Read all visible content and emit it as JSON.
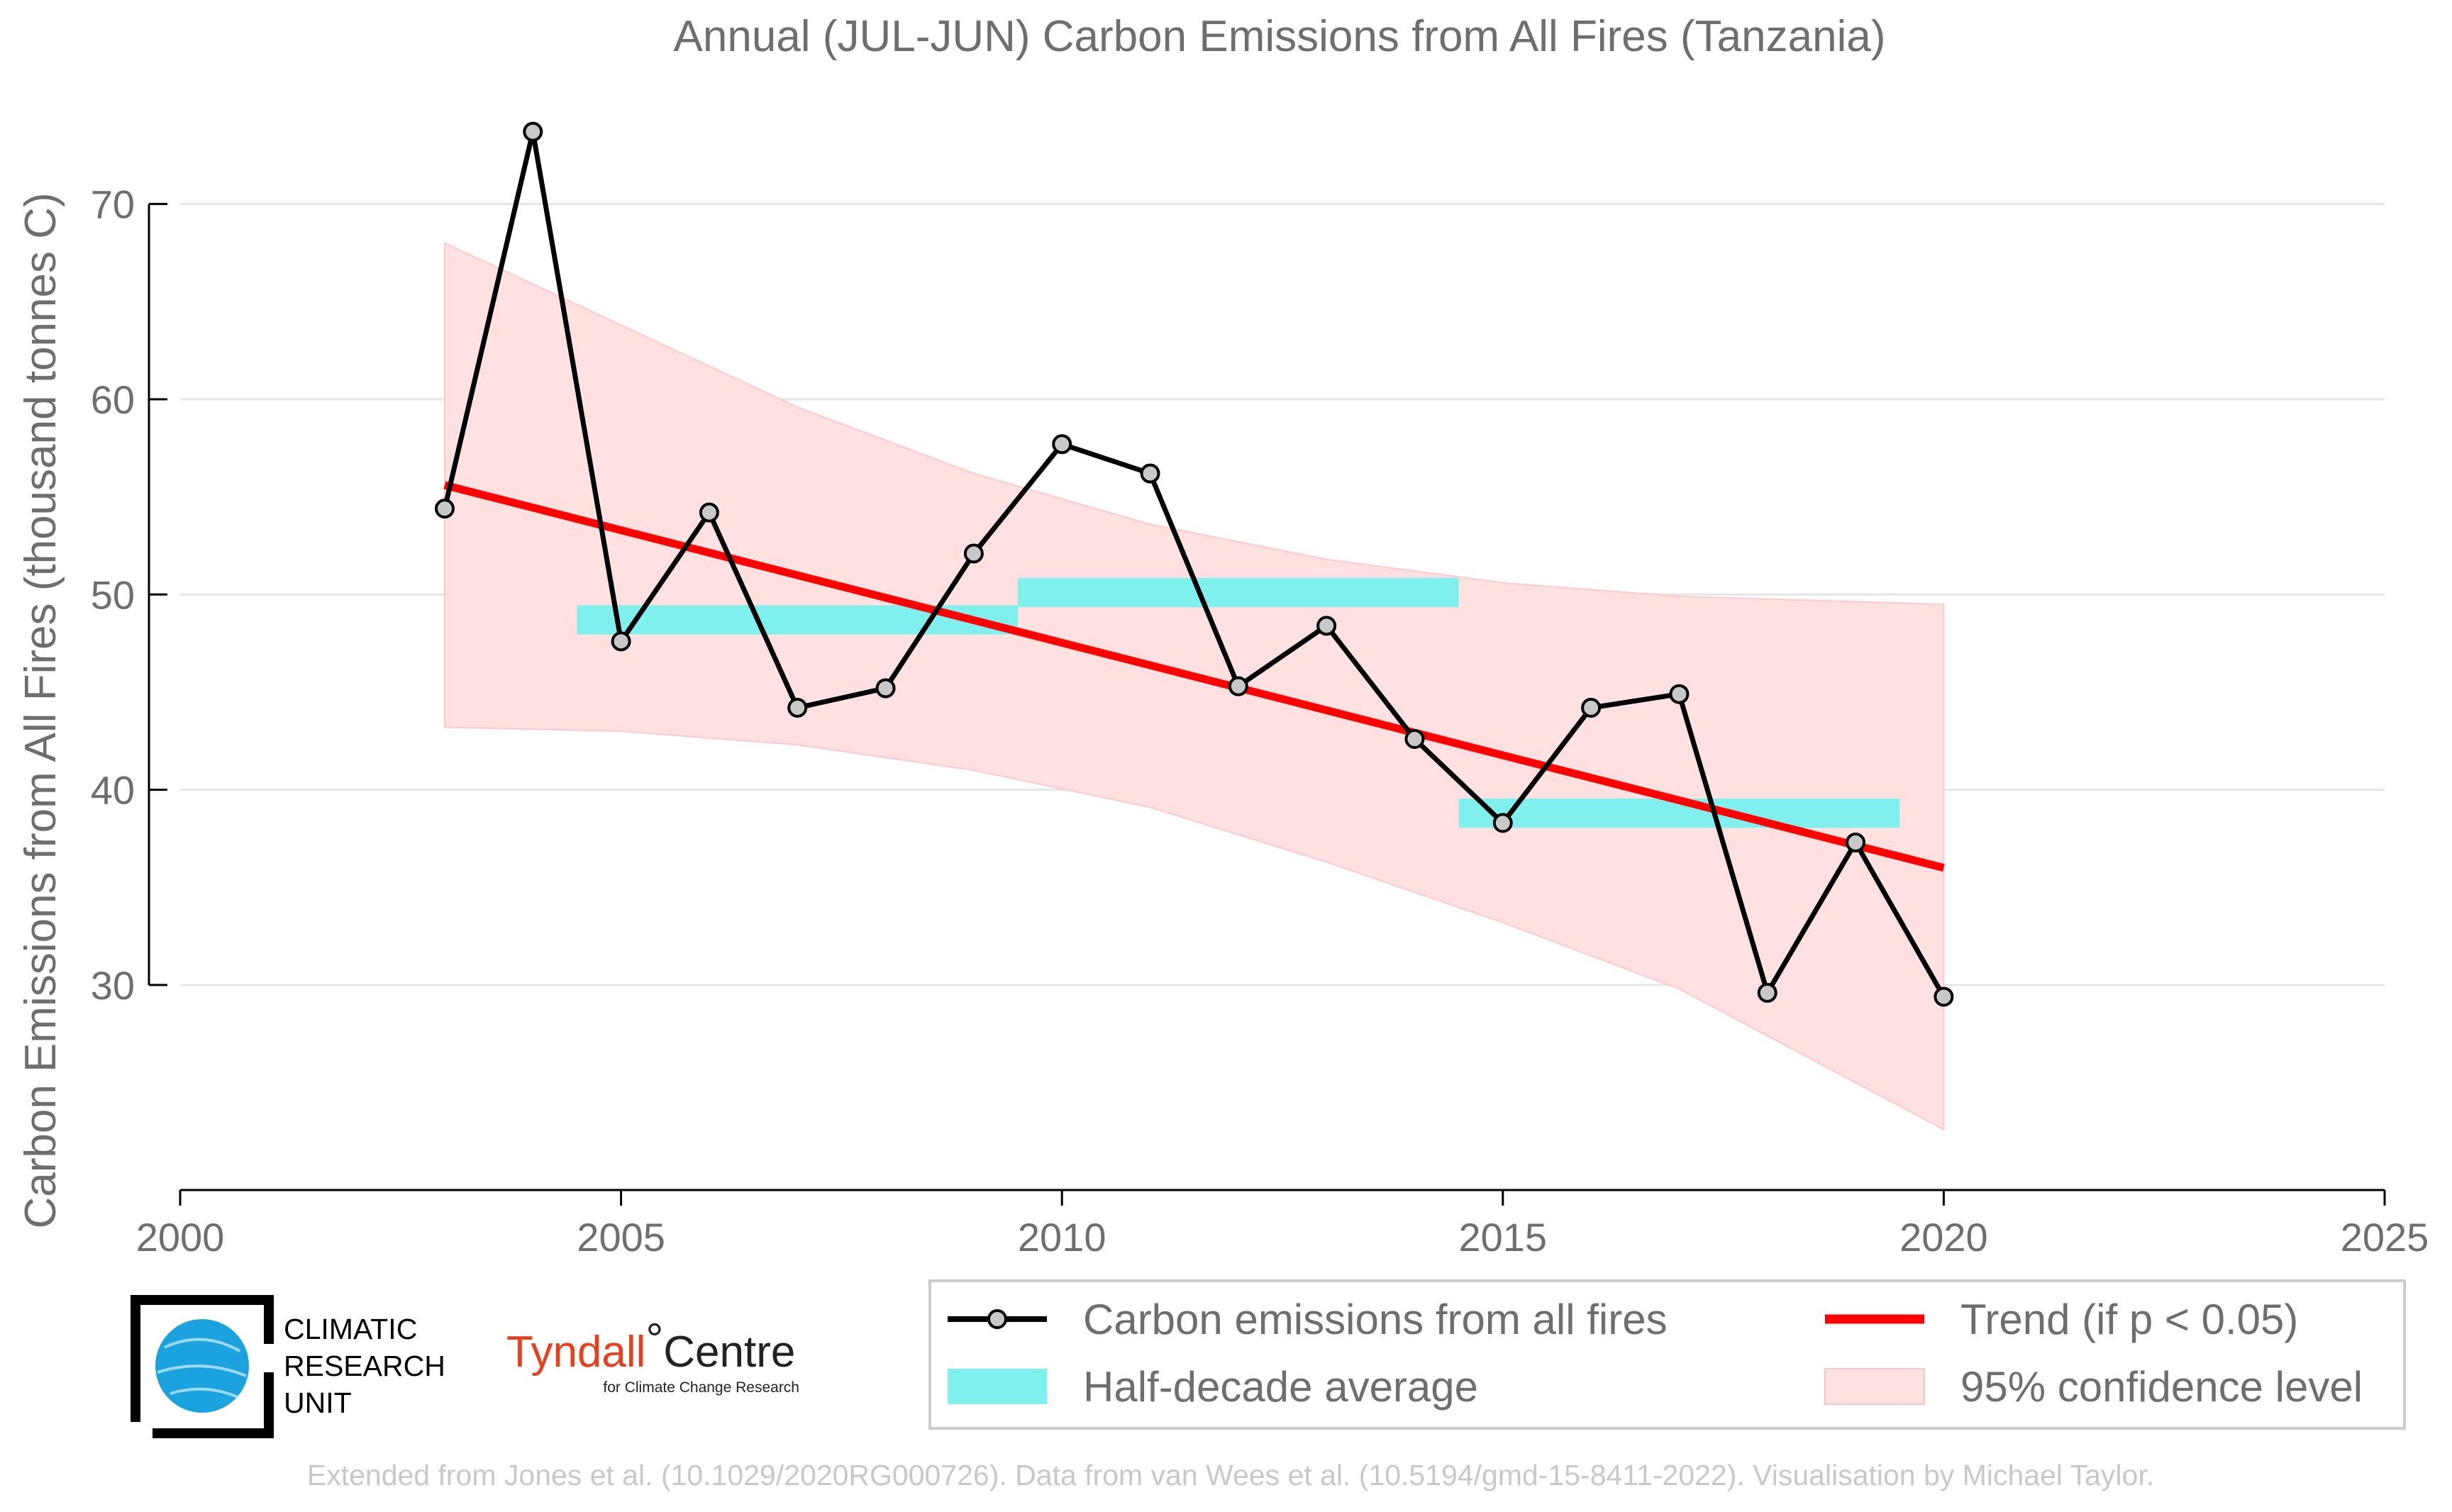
{
  "chart_data": {
    "type": "line",
    "title": "Annual (JUL-JUN) Carbon Emissions from All Fires (Tanzania)",
    "xlabel": "",
    "ylabel": "Carbon Emissions from All Fires (thousand tonnes C)",
    "xlim": [
      2000,
      2025
    ],
    "ylim": [
      19.5,
      75
    ],
    "xticks": [
      2000,
      2005,
      2010,
      2015,
      2020,
      2025
    ],
    "yticks": [
      30,
      40,
      50,
      60,
      70
    ],
    "grid": "horizontal",
    "legend_position": "bottom-right",
    "series": [
      {
        "name": "Carbon emissions from all fires",
        "color": "#000000",
        "x": [
          2003,
          2004,
          2005,
          2006,
          2007,
          2008,
          2009,
          2010,
          2011,
          2012,
          2013,
          2014,
          2015,
          2016,
          2017,
          2018,
          2019,
          2020
        ],
        "values": [
          54.4,
          73.7,
          47.6,
          54.2,
          44.2,
          45.2,
          52.1,
          57.7,
          56.2,
          45.3,
          48.4,
          42.6,
          38.3,
          44.2,
          44.9,
          29.6,
          37.3,
          29.4
        ]
      },
      {
        "name": "Half-decade average",
        "color": "#7ff0ee",
        "segments": [
          {
            "x0": 2004.5,
            "x1": 2009.5,
            "value": 48.7
          },
          {
            "x0": 2009.5,
            "x1": 2014.5,
            "value": 50.1
          },
          {
            "x0": 2014.5,
            "x1": 2019.5,
            "value": 38.8
          }
        ]
      },
      {
        "name": "Trend (if p < 0.05)",
        "color": "#ff0000",
        "x": [
          2003,
          2020
        ],
        "values": [
          55.6,
          36.0
        ]
      },
      {
        "name": "95% confidence level",
        "color": "#ffe1e1",
        "x": [
          2003,
          2005,
          2007,
          2009,
          2011,
          2013,
          2015,
          2017,
          2020
        ],
        "upper": [
          68.0,
          63.8,
          59.6,
          56.2,
          53.6,
          51.8,
          50.6,
          49.9,
          49.5
        ],
        "lower": [
          43.2,
          43.0,
          42.3,
          41.0,
          39.1,
          36.3,
          33.2,
          29.8,
          22.6
        ]
      }
    ]
  },
  "legend": {
    "items": [
      {
        "label": "Carbon emissions from all fires",
        "kind": "line-marker",
        "color": "#000000"
      },
      {
        "label": "Trend (if p < 0.05)",
        "kind": "line",
        "color": "#ff0000"
      },
      {
        "label": "Half-decade average",
        "kind": "patch",
        "color": "#7ff0ee"
      },
      {
        "label": "95% confidence level",
        "kind": "patch",
        "color": "#ffe1e1"
      }
    ]
  },
  "logos": {
    "cru": {
      "line1": "CLIMATIC",
      "line2": "RESEARCH",
      "line3": "UNIT",
      "icon": "globe-icon",
      "color": "#1aa3de"
    },
    "tyndall": {
      "name": "Tyndall",
      "degree": "°",
      "centre": "Centre",
      "subtitle": "for Climate Change Research"
    }
  },
  "credit": "Extended from Jones et al. (10.1029/2020RG000726). Data from van Wees et al. (10.5194/gmd-15-8411-2022). Visualisation by Michael Taylor."
}
